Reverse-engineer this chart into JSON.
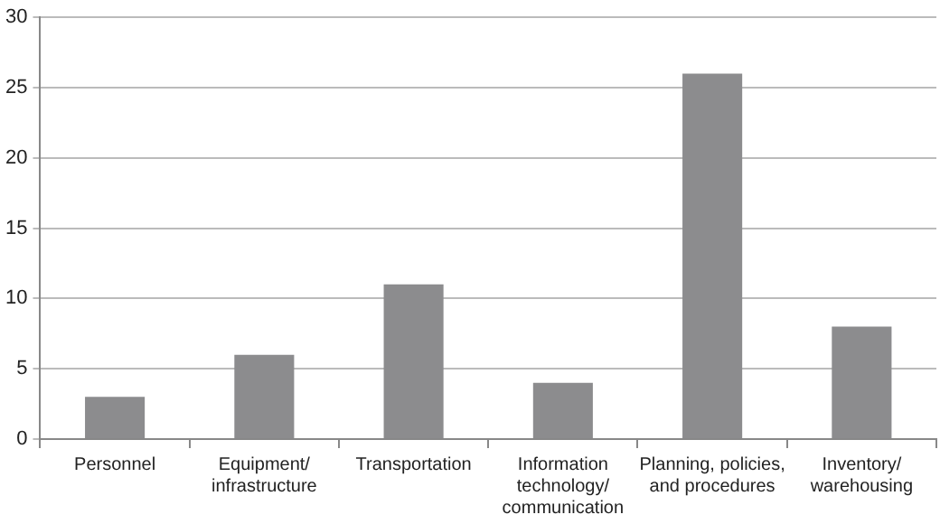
{
  "chart_data": {
    "type": "bar",
    "categories": [
      "Personnel",
      "Equipment/\ninfrastructure",
      "Transportation",
      "Information\ntechnology/\ncommunication",
      "Planning, policies,\nand procedures",
      "Inventory/\nwarehousing"
    ],
    "values": [
      3,
      6,
      11,
      4,
      26,
      8
    ],
    "color": "#8c8c8e",
    "ylim": [
      0,
      30
    ],
    "yticks": [
      0,
      5,
      10,
      15,
      20,
      25,
      30
    ],
    "grid": "y"
  }
}
